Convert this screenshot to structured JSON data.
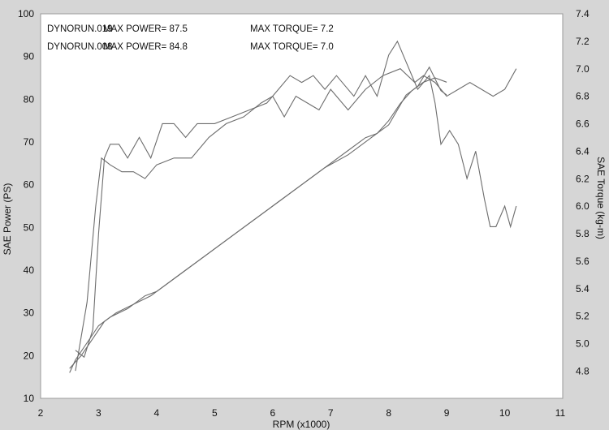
{
  "chart_data": {
    "type": "line",
    "xlabel": "RPM (x1000)",
    "ylabel_left": "SAE Power (PS)",
    "ylabel_right": "SAE Torque (kg-m)",
    "xlim": [
      2,
      11
    ],
    "ylim_left": [
      10,
      100
    ],
    "ylim_right": [
      4.6,
      7.4
    ],
    "x_ticks": [
      "2",
      "3",
      "4",
      "5",
      "6",
      "7",
      "8",
      "9",
      "10",
      "11"
    ],
    "y_ticks_left": [
      "10",
      "20",
      "30",
      "40",
      "50",
      "60",
      "70",
      "80",
      "90",
      "100"
    ],
    "y_ticks_right": [
      "4.8",
      "5.0",
      "5.2",
      "5.4",
      "5.6",
      "5.8",
      "6.0",
      "6.2",
      "6.4",
      "6.6",
      "6.8",
      "7.0",
      "7.2",
      "7.4"
    ],
    "annotations": [
      {
        "run": "DYNORUN.019",
        "power": "MAX POWER= 87.5",
        "torque": "MAX TORQUE= 7.2"
      },
      {
        "run": "DYNORUN.008",
        "power": "MAX POWER= 84.8",
        "torque": "MAX TORQUE= 7.0"
      }
    ],
    "series": [
      {
        "axis": "left",
        "points": [
          [
            2.5,
            16
          ],
          [
            2.6,
            19
          ],
          [
            2.8,
            23
          ],
          [
            3.0,
            27
          ],
          [
            3.2,
            29
          ],
          [
            3.5,
            31
          ],
          [
            3.8,
            34
          ],
          [
            4.0,
            35
          ],
          [
            4.3,
            38
          ],
          [
            4.6,
            41
          ],
          [
            5.0,
            45
          ],
          [
            5.5,
            50
          ],
          [
            6.0,
            55
          ],
          [
            6.5,
            60
          ],
          [
            7.0,
            65
          ],
          [
            7.3,
            68
          ],
          [
            7.6,
            71
          ],
          [
            7.8,
            72
          ],
          [
            8.0,
            75
          ],
          [
            8.2,
            79
          ],
          [
            8.4,
            82
          ],
          [
            8.6,
            84
          ],
          [
            8.8,
            85
          ],
          [
            9.0,
            84
          ]
        ]
      },
      {
        "axis": "left",
        "points": [
          [
            2.5,
            17
          ],
          [
            2.7,
            20
          ],
          [
            2.9,
            24
          ],
          [
            3.1,
            28
          ],
          [
            3.3,
            30
          ],
          [
            3.6,
            32
          ],
          [
            3.9,
            34
          ],
          [
            4.2,
            37
          ],
          [
            4.5,
            40
          ],
          [
            4.9,
            44
          ],
          [
            5.4,
            49
          ],
          [
            5.9,
            54
          ],
          [
            6.4,
            59
          ],
          [
            6.9,
            64
          ],
          [
            7.3,
            67
          ],
          [
            7.7,
            71
          ],
          [
            8.0,
            74
          ],
          [
            8.3,
            81
          ],
          [
            8.5,
            83
          ],
          [
            8.7,
            87.5
          ],
          [
            8.9,
            82
          ],
          [
            9.0,
            81
          ]
        ]
      },
      {
        "axis": "right",
        "points": [
          [
            2.6,
            4.95
          ],
          [
            2.75,
            4.9
          ],
          [
            2.9,
            5.1
          ],
          [
            3.0,
            5.8
          ],
          [
            3.1,
            6.35
          ],
          [
            3.2,
            6.45
          ],
          [
            3.35,
            6.45
          ],
          [
            3.5,
            6.35
          ],
          [
            3.7,
            6.5
          ],
          [
            3.9,
            6.35
          ],
          [
            4.1,
            6.6
          ],
          [
            4.3,
            6.6
          ],
          [
            4.5,
            6.5
          ],
          [
            4.7,
            6.6
          ],
          [
            5.0,
            6.6
          ],
          [
            5.3,
            6.65
          ],
          [
            5.6,
            6.7
          ],
          [
            5.9,
            6.75
          ],
          [
            6.1,
            6.85
          ],
          [
            6.3,
            6.95
          ],
          [
            6.5,
            6.9
          ],
          [
            6.7,
            6.95
          ],
          [
            6.9,
            6.85
          ],
          [
            7.1,
            6.95
          ],
          [
            7.4,
            6.8
          ],
          [
            7.6,
            6.95
          ],
          [
            7.8,
            6.8
          ],
          [
            8.0,
            7.1
          ],
          [
            8.15,
            7.2
          ],
          [
            8.3,
            7.05
          ],
          [
            8.5,
            6.85
          ],
          [
            8.7,
            6.95
          ],
          [
            8.8,
            6.75
          ],
          [
            8.9,
            6.45
          ],
          [
            9.05,
            6.55
          ],
          [
            9.2,
            6.45
          ],
          [
            9.35,
            6.2
          ],
          [
            9.5,
            6.4
          ],
          [
            9.65,
            6.05
          ],
          [
            9.75,
            5.85
          ],
          [
            9.85,
            5.85
          ],
          [
            10.0,
            6.0
          ],
          [
            10.1,
            5.85
          ],
          [
            10.2,
            6.0
          ]
        ]
      },
      {
        "axis": "right",
        "points": [
          [
            2.6,
            4.8
          ],
          [
            2.8,
            5.3
          ],
          [
            2.95,
            6.0
          ],
          [
            3.05,
            6.35
          ],
          [
            3.2,
            6.3
          ],
          [
            3.4,
            6.25
          ],
          [
            3.6,
            6.25
          ],
          [
            3.8,
            6.2
          ],
          [
            4.0,
            6.3
          ],
          [
            4.3,
            6.35
          ],
          [
            4.6,
            6.35
          ],
          [
            4.9,
            6.5
          ],
          [
            5.2,
            6.6
          ],
          [
            5.5,
            6.65
          ],
          [
            5.8,
            6.75
          ],
          [
            6.0,
            6.8
          ],
          [
            6.2,
            6.65
          ],
          [
            6.4,
            6.8
          ],
          [
            6.6,
            6.75
          ],
          [
            6.8,
            6.7
          ],
          [
            7.0,
            6.85
          ],
          [
            7.3,
            6.7
          ],
          [
            7.6,
            6.85
          ],
          [
            7.9,
            6.95
          ],
          [
            8.2,
            7.0
          ],
          [
            8.45,
            6.9
          ],
          [
            8.6,
            6.95
          ],
          [
            8.8,
            6.9
          ],
          [
            9.0,
            6.8
          ],
          [
            9.2,
            6.85
          ],
          [
            9.4,
            6.9
          ],
          [
            9.6,
            6.85
          ],
          [
            9.8,
            6.8
          ],
          [
            10.0,
            6.85
          ],
          [
            10.2,
            7.0
          ]
        ]
      }
    ]
  }
}
